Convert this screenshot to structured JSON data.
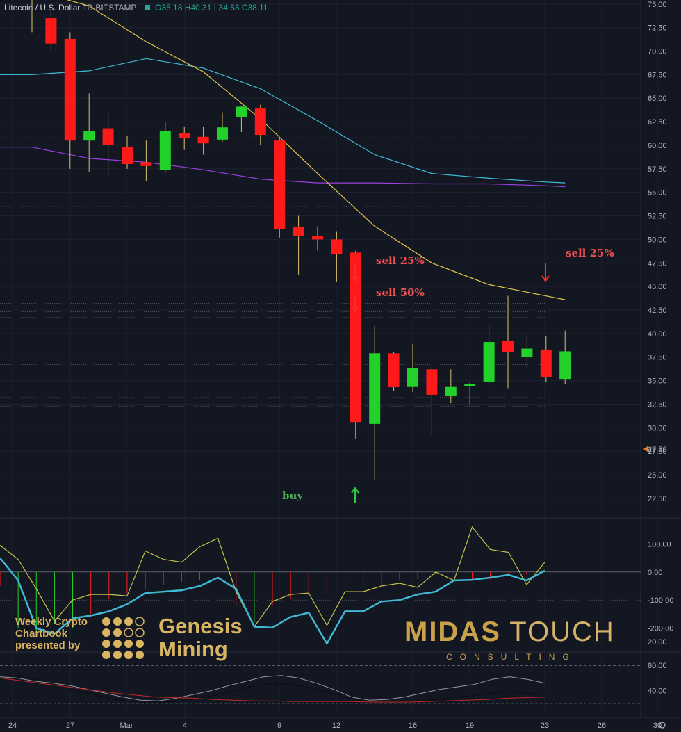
{
  "header": {
    "symbol": "Litecoin / U.S. Dollar",
    "interval": "1D",
    "exchange": "BITSTAMP",
    "ohlc": "O35.18 H40.31 L34.63 C38.11"
  },
  "annotations": {
    "sell1": "sell 25%",
    "sell2": "sell 50%",
    "sell3": "sell 25%",
    "buy": "buy"
  },
  "branding": {
    "left_sub": [
      "Weekly Crypto",
      "Chartbook",
      "presented by"
    ],
    "left_big": [
      "Genesis",
      "Mining"
    ],
    "right_main": "MIDAS",
    "right_main2": "TOUCH",
    "right_sub": "CONSULTING"
  },
  "colors": {
    "background": "#131722",
    "up": "#22d22a",
    "down": "#ff1a1a",
    "ma_fast": "#e6c84a",
    "ma_mid": "#3fb9d4",
    "ma_slow": "#9c3ee0",
    "text": "#b2b5be"
  },
  "chart_data": [
    {
      "type": "candlestick",
      "panel": "price",
      "yticks": [
        "75.00",
        "72.50",
        "70.00",
        "67.50",
        "65.00",
        "62.50",
        "60.00",
        "57.50",
        "55.00",
        "52.50",
        "50.00",
        "47.50",
        "45.00",
        "42.50",
        "40.00",
        "37.50",
        "35.00",
        "32.50",
        "30.00",
        "27.50",
        "25.00",
        "22.50"
      ],
      "xticks": [
        "24",
        "27",
        "Mar",
        "4",
        "9",
        "12",
        "16",
        "19",
        "23",
        "26",
        "30"
      ],
      "ylim": [
        20.5,
        75.5
      ],
      "candles": [
        [
          75.5,
          77.0,
          72.0,
          76.0
        ],
        [
          73.5,
          74.5,
          70.0,
          70.8
        ],
        [
          71.3,
          72.0,
          57.5,
          60.5
        ],
        [
          60.5,
          65.5,
          57.2,
          61.5
        ],
        [
          61.8,
          63.5,
          56.8,
          60.0
        ],
        [
          59.8,
          61.0,
          57.5,
          58.0
        ],
        [
          58.2,
          60.5,
          56.2,
          57.8
        ],
        [
          57.4,
          62.5,
          57.1,
          61.5
        ],
        [
          61.3,
          62.0,
          59.5,
          60.8
        ],
        [
          60.9,
          62.0,
          59.0,
          60.2
        ],
        [
          60.6,
          63.5,
          60.4,
          61.9
        ],
        [
          63.0,
          64.2,
          61.4,
          64.1
        ],
        [
          63.9,
          64.3,
          60.0,
          61.1
        ],
        [
          60.5,
          60.8,
          50.2,
          51.1
        ],
        [
          51.3,
          52.5,
          46.2,
          50.4
        ],
        [
          50.4,
          51.4,
          48.8,
          50.0
        ],
        [
          50.0,
          50.8,
          45.5,
          48.4
        ],
        [
          48.6,
          48.8,
          28.8,
          30.6
        ],
        [
          30.4,
          40.8,
          24.5,
          37.9
        ],
        [
          37.9,
          38.0,
          33.9,
          34.3
        ],
        [
          34.4,
          38.9,
          33.8,
          36.3
        ],
        [
          36.2,
          36.4,
          29.2,
          33.5
        ],
        [
          33.4,
          36.2,
          32.6,
          34.4
        ],
        [
          34.5,
          34.8,
          32.4,
          34.6
        ],
        [
          34.9,
          40.9,
          34.5,
          39.1
        ],
        [
          39.2,
          44.0,
          34.2,
          38.0
        ],
        [
          37.5,
          39.9,
          36.3,
          38.4
        ],
        [
          38.3,
          39.7,
          34.8,
          35.4
        ],
        [
          35.18,
          40.31,
          34.63,
          38.11
        ]
      ],
      "ma_fast": [
        [
          0,
          76.5
        ],
        [
          3,
          74.8
        ],
        [
          6,
          71.0
        ],
        [
          9,
          67.8
        ],
        [
          12,
          62.8
        ],
        [
          15,
          57.0
        ],
        [
          18,
          51.4
        ],
        [
          21,
          47.5
        ],
        [
          24,
          45.2
        ],
        [
          27,
          44.0
        ],
        [
          28,
          43.6
        ]
      ],
      "ma_mid": [
        [
          0,
          67.5
        ],
        [
          3,
          67.9
        ],
        [
          6,
          69.2
        ],
        [
          9,
          68.2
        ],
        [
          12,
          66.0
        ],
        [
          15,
          62.6
        ],
        [
          18,
          59.0
        ],
        [
          21,
          57.0
        ],
        [
          24,
          56.5
        ],
        [
          27,
          56.1
        ],
        [
          28,
          56.0
        ]
      ],
      "ma_slow": [
        [
          0,
          59.8
        ],
        [
          3,
          58.6
        ],
        [
          6,
          58.2
        ],
        [
          9,
          57.4
        ],
        [
          12,
          56.4
        ],
        [
          15,
          56.0
        ],
        [
          18,
          56.0
        ],
        [
          21,
          55.9
        ],
        [
          24,
          55.9
        ],
        [
          27,
          55.7
        ],
        [
          28,
          55.6
        ]
      ]
    },
    {
      "type": "line",
      "panel": "oscillator",
      "yticks": [
        "100.00",
        "0.00",
        "-100.00",
        "-200.00"
      ],
      "series_fast": [
        95,
        45,
        -60,
        -175,
        -100,
        -80,
        -80,
        -85,
        75,
        45,
        35,
        90,
        120,
        -70,
        -195,
        -105,
        -80,
        -75,
        -190,
        -70,
        -70,
        -50,
        -40,
        -55,
        0,
        -30,
        160,
        80,
        70,
        -45,
        35
      ],
      "series_slow": [
        50,
        -30,
        -200,
        -220,
        -165,
        -155,
        -140,
        -115,
        -75,
        -70,
        -65,
        -50,
        -20,
        -60,
        -195,
        -198,
        -160,
        -145,
        -255,
        -140,
        -140,
        -105,
        -100,
        -80,
        -70,
        -30,
        -28,
        -20,
        -10,
        -30,
        5
      ],
      "histogram": [
        -50,
        -200,
        -210,
        -185,
        -200,
        -150,
        -95,
        -75,
        -60,
        -45,
        -35,
        -30,
        -35,
        -120,
        -180,
        -120,
        -95,
        -80,
        -75,
        -60,
        -55,
        -45,
        -30,
        -25,
        -10,
        -20,
        -30,
        -25,
        -15,
        -10,
        5
      ]
    },
    {
      "type": "line",
      "panel": "stochastic",
      "yticks": [
        "80.00",
        "40.00"
      ],
      "series_k": [
        62,
        60,
        55,
        52,
        48,
        42,
        36,
        30,
        25,
        24,
        28,
        34,
        40,
        48,
        55,
        62,
        64,
        60,
        52,
        42,
        30,
        25,
        26,
        30,
        36,
        42,
        46,
        50,
        58,
        62,
        58,
        52
      ],
      "series_d": [
        58,
        62,
        58,
        50,
        42,
        35,
        28,
        24,
        22,
        22,
        24,
        28,
        34,
        40,
        48,
        52,
        50,
        45,
        38,
        30,
        24,
        22,
        22,
        24,
        26,
        30,
        32,
        36,
        38,
        36,
        34
      ],
      "series_signal": [
        60,
        56,
        52,
        48,
        44,
        40,
        36,
        33,
        30,
        29,
        28,
        26,
        25,
        24,
        24,
        23,
        23,
        23,
        23,
        22,
        22,
        22,
        23,
        24,
        25,
        26,
        28,
        29,
        30
      ]
    }
  ]
}
